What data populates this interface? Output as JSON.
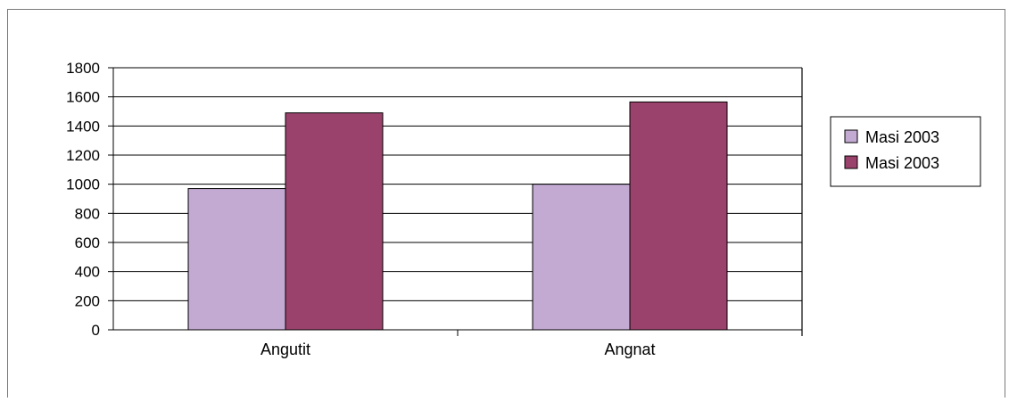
{
  "chart_data": {
    "type": "bar",
    "title": "",
    "xlabel": "",
    "ylabel": "",
    "categories": [
      "Angutit",
      "Angnat"
    ],
    "series": [
      {
        "name": "Masi 2003",
        "values": [
          970,
          1000
        ],
        "color": "#c3aad3"
      },
      {
        "name": "Masi 2003",
        "values": [
          1490,
          1565
        ],
        "color": "#9b426c"
      }
    ],
    "ylim": [
      0,
      1800
    ],
    "yticks": [
      "0",
      "200",
      "400",
      "600",
      "800",
      "1000",
      "1200",
      "1400",
      "1600",
      "1800"
    ],
    "grid": true,
    "legend_position": "right"
  }
}
